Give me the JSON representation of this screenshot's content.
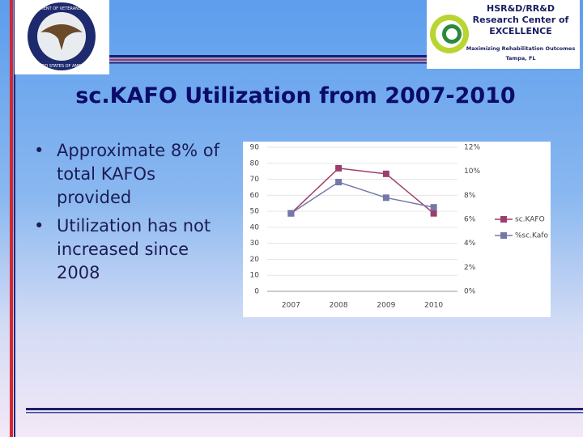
{
  "header": {
    "seal_top": "DEPARTMENT OF VETERANS AFFAIRS",
    "seal_bottom": "UNITED STATES OF AMERICA",
    "logo_line1": "HSR&D/RR&D",
    "logo_line2": "Research Center of",
    "logo_line3": "EXCELLENCE",
    "logo_tagline": "Maximizing Rehabilitation Outcomes",
    "logo_location": "Tampa, FL"
  },
  "title": "sc.KAFO Utilization from 2007-2010",
  "bullets": [
    "Approximate 8% of total KAFOs provided",
    "Utilization has not increased since 2008"
  ],
  "chart_data": {
    "type": "line",
    "categories": [
      "2007",
      "2008",
      "2009",
      "2010"
    ],
    "series": [
      {
        "name": "sc.KAFO",
        "color": "#9e3d6c",
        "values": [
          48.7,
          76.9,
          73.4,
          48.7
        ]
      },
      {
        "name": "%sc.Kafo",
        "color": "#7378a6",
        "axis": "y2",
        "values": [
          6.5,
          9.1,
          7.8,
          7.0
        ]
      }
    ],
    "ylim": [
      0,
      90
    ],
    "yticks": [
      0,
      10,
      20,
      30,
      40,
      50,
      60,
      70,
      80,
      90
    ],
    "y2lim": [
      0,
      12
    ],
    "y2ticks": [
      {
        "value": 0,
        "label": "0%"
      },
      {
        "value": 2,
        "label": "2%"
      },
      {
        "value": 4,
        "label": "4%"
      },
      {
        "value": 6,
        "label": "6%"
      },
      {
        "value": 8,
        "label": "8%"
      },
      {
        "value": 10,
        "label": "10%"
      },
      {
        "value": 12,
        "label": "12%"
      }
    ],
    "grid": true,
    "legend": "right"
  }
}
